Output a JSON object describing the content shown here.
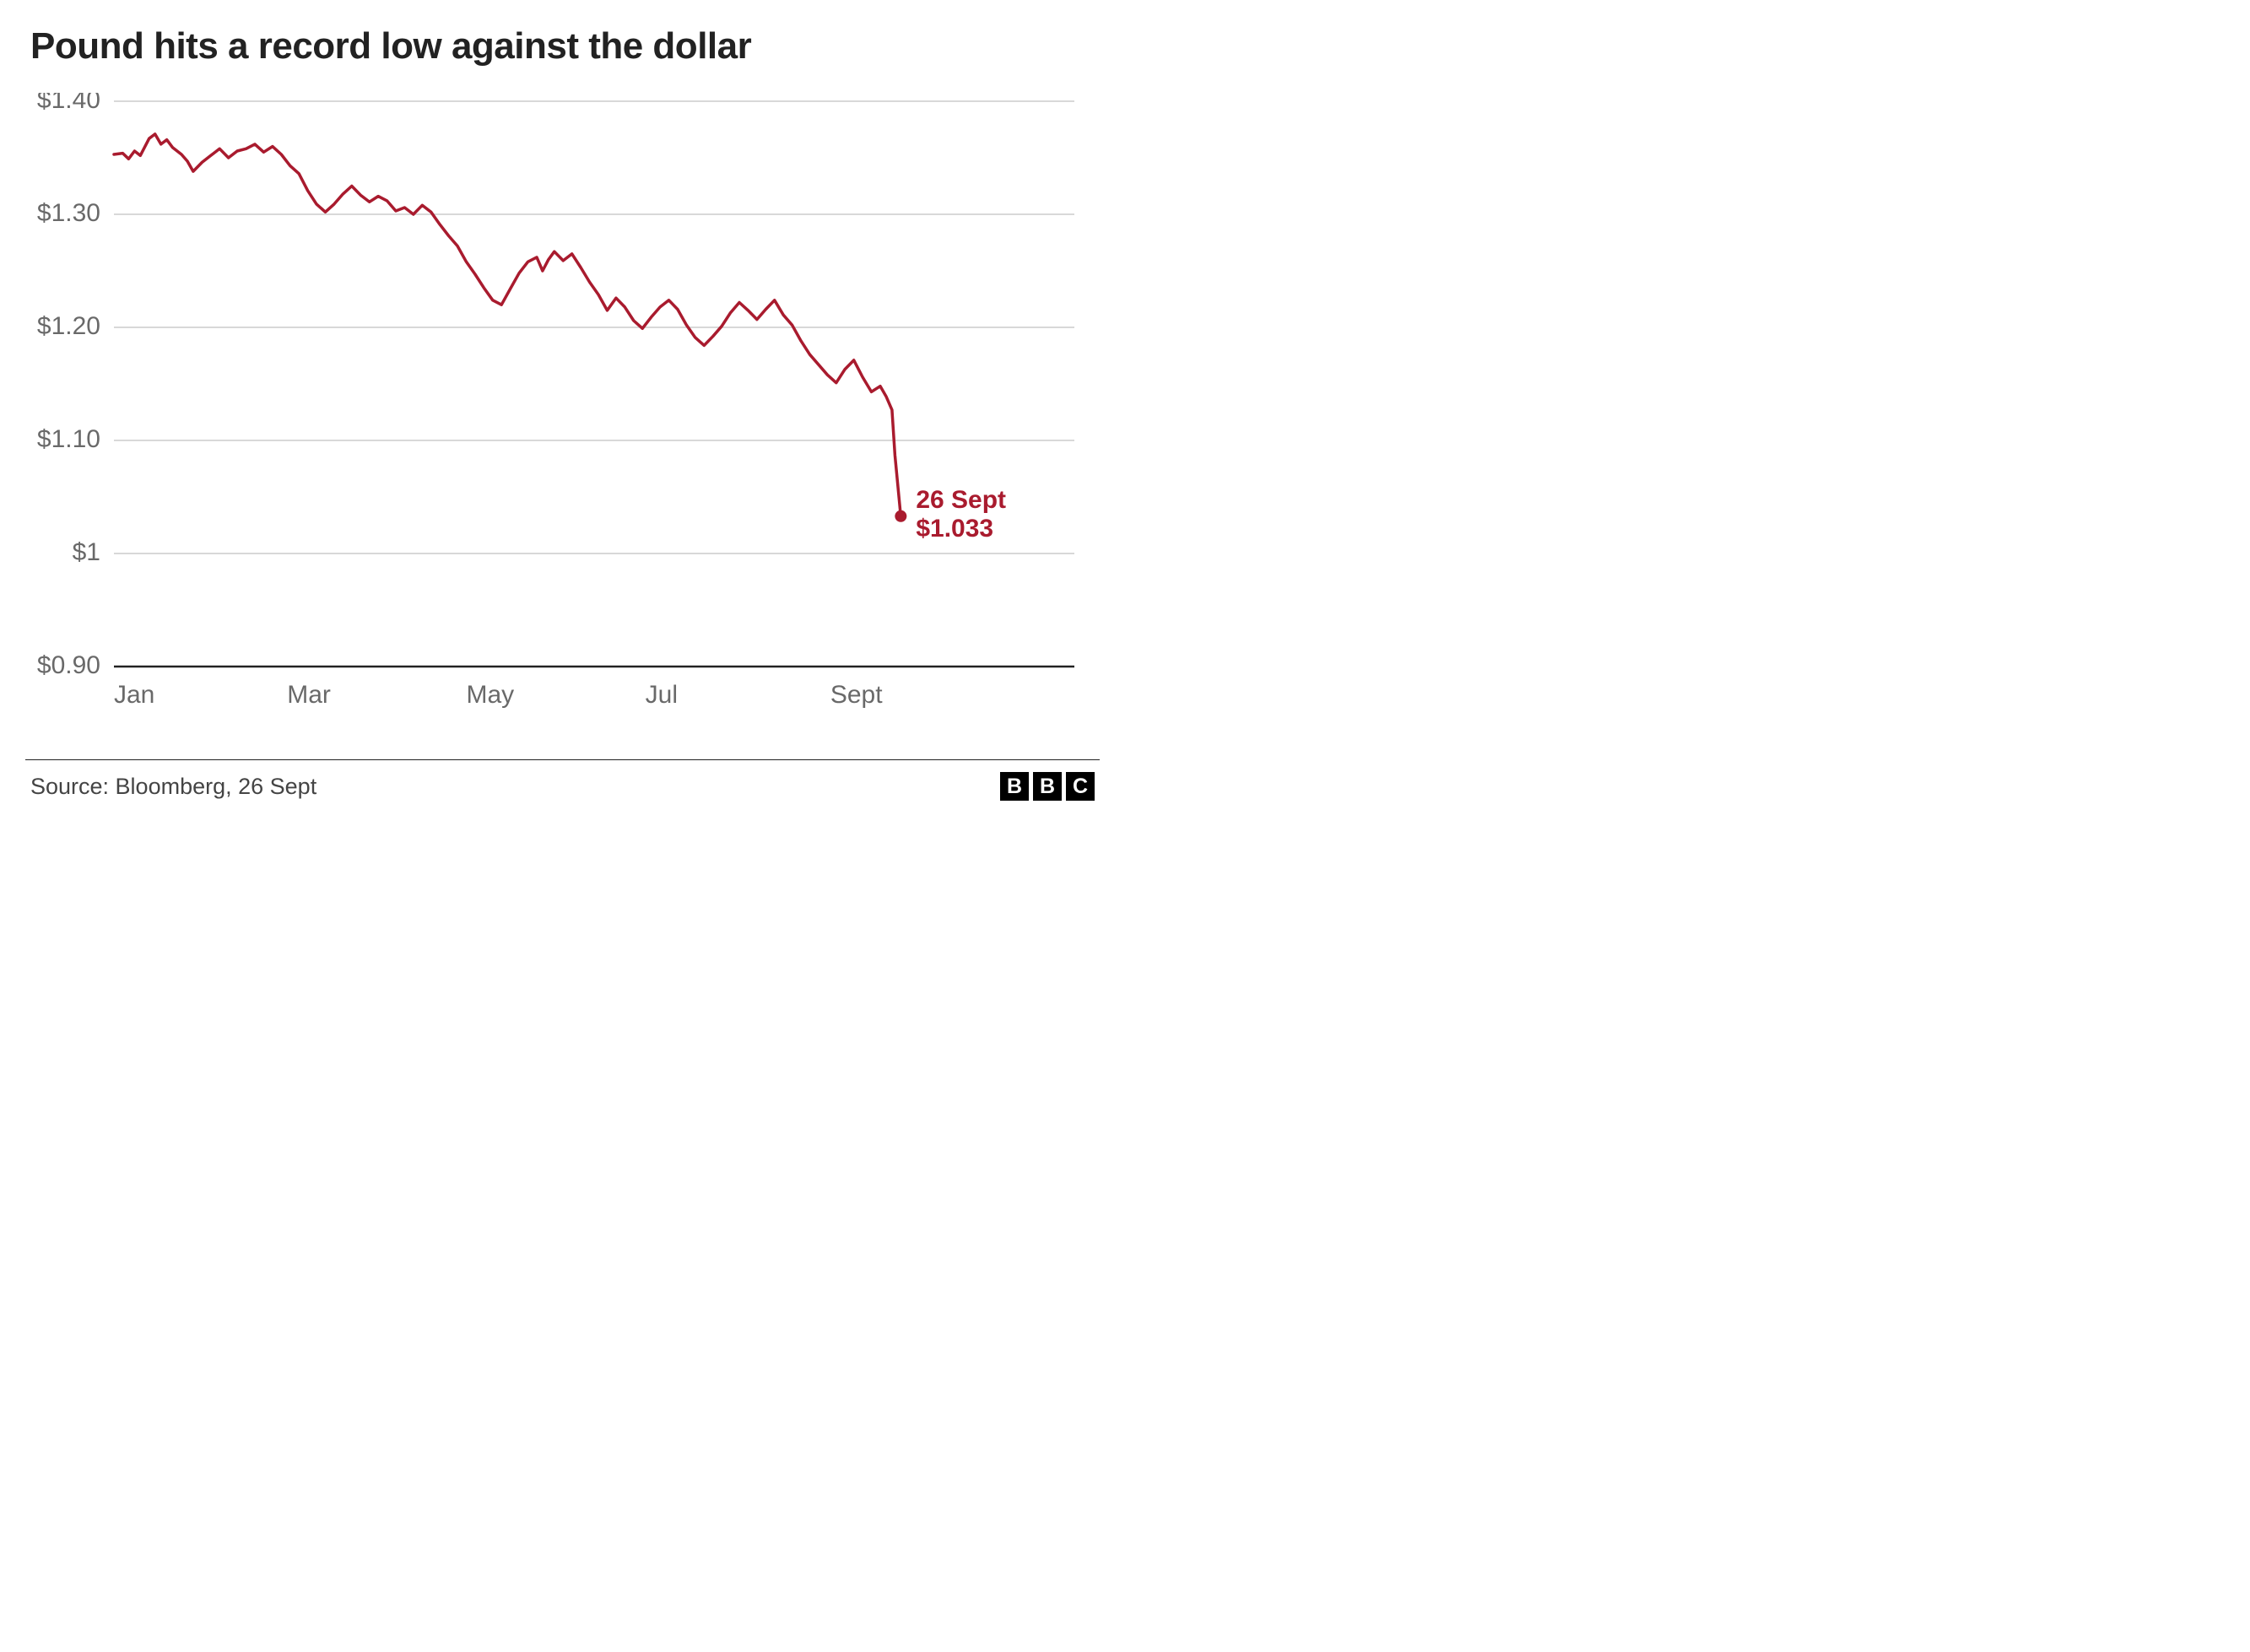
{
  "title": "Pound hits a record low against the dollar",
  "source": "Source: Bloomberg, 26 Sept",
  "logo_letters": [
    "B",
    "B",
    "C"
  ],
  "chart": {
    "type": "line",
    "line_color": "#a91b2e",
    "line_width": 3.5,
    "end_marker_color": "#a91b2e",
    "end_marker_radius": 7,
    "end_label_date": "26 Sept",
    "end_label_value": "$1.033",
    "end_label_color": "#a91b2e",
    "background_color": "#ffffff",
    "grid_color": "#cccccc",
    "axis_color": "#222222",
    "tick_label_color": "#696969",
    "tick_fontsize": 30,
    "title_fontsize": 44,
    "title_color": "#222222",
    "ylim": [
      0.9,
      1.4
    ],
    "yticks": [
      {
        "v": 1.4,
        "label": "$1.40"
      },
      {
        "v": 1.3,
        "label": "$1.30"
      },
      {
        "v": 1.2,
        "label": "$1.20"
      },
      {
        "v": 1.1,
        "label": "$1.10"
      },
      {
        "v": 1.0,
        "label": "$1"
      },
      {
        "v": 0.9,
        "label": "$0.90"
      }
    ],
    "x_start_day": 0,
    "x_end_day": 284,
    "xticks": [
      {
        "day": 0,
        "label": "Jan"
      },
      {
        "day": 59,
        "label": "Mar"
      },
      {
        "day": 120,
        "label": "May"
      },
      {
        "day": 181,
        "label": "Jul"
      },
      {
        "day": 244,
        "label": "Sept"
      }
    ],
    "series": [
      {
        "day": 0,
        "v": 1.353
      },
      {
        "day": 3,
        "v": 1.354
      },
      {
        "day": 5,
        "v": 1.349
      },
      {
        "day": 7,
        "v": 1.356
      },
      {
        "day": 9,
        "v": 1.352
      },
      {
        "day": 12,
        "v": 1.367
      },
      {
        "day": 14,
        "v": 1.371
      },
      {
        "day": 16,
        "v": 1.362
      },
      {
        "day": 18,
        "v": 1.366
      },
      {
        "day": 20,
        "v": 1.359
      },
      {
        "day": 23,
        "v": 1.353
      },
      {
        "day": 25,
        "v": 1.347
      },
      {
        "day": 27,
        "v": 1.338
      },
      {
        "day": 30,
        "v": 1.346
      },
      {
        "day": 33,
        "v": 1.352
      },
      {
        "day": 36,
        "v": 1.358
      },
      {
        "day": 39,
        "v": 1.35
      },
      {
        "day": 42,
        "v": 1.356
      },
      {
        "day": 45,
        "v": 1.358
      },
      {
        "day": 48,
        "v": 1.362
      },
      {
        "day": 51,
        "v": 1.355
      },
      {
        "day": 54,
        "v": 1.36
      },
      {
        "day": 57,
        "v": 1.353
      },
      {
        "day": 60,
        "v": 1.343
      },
      {
        "day": 63,
        "v": 1.336
      },
      {
        "day": 66,
        "v": 1.321
      },
      {
        "day": 69,
        "v": 1.309
      },
      {
        "day": 72,
        "v": 1.302
      },
      {
        "day": 75,
        "v": 1.309
      },
      {
        "day": 78,
        "v": 1.318
      },
      {
        "day": 81,
        "v": 1.325
      },
      {
        "day": 84,
        "v": 1.317
      },
      {
        "day": 87,
        "v": 1.311
      },
      {
        "day": 90,
        "v": 1.316
      },
      {
        "day": 93,
        "v": 1.312
      },
      {
        "day": 96,
        "v": 1.303
      },
      {
        "day": 99,
        "v": 1.306
      },
      {
        "day": 102,
        "v": 1.3
      },
      {
        "day": 105,
        "v": 1.308
      },
      {
        "day": 108,
        "v": 1.302
      },
      {
        "day": 111,
        "v": 1.291
      },
      {
        "day": 114,
        "v": 1.281
      },
      {
        "day": 117,
        "v": 1.272
      },
      {
        "day": 120,
        "v": 1.258
      },
      {
        "day": 123,
        "v": 1.247
      },
      {
        "day": 126,
        "v": 1.235
      },
      {
        "day": 129,
        "v": 1.224
      },
      {
        "day": 132,
        "v": 1.22
      },
      {
        "day": 135,
        "v": 1.234
      },
      {
        "day": 138,
        "v": 1.248
      },
      {
        "day": 141,
        "v": 1.258
      },
      {
        "day": 144,
        "v": 1.262
      },
      {
        "day": 146,
        "v": 1.25
      },
      {
        "day": 148,
        "v": 1.26
      },
      {
        "day": 150,
        "v": 1.267
      },
      {
        "day": 153,
        "v": 1.259
      },
      {
        "day": 156,
        "v": 1.265
      },
      {
        "day": 159,
        "v": 1.253
      },
      {
        "day": 162,
        "v": 1.24
      },
      {
        "day": 165,
        "v": 1.229
      },
      {
        "day": 168,
        "v": 1.215
      },
      {
        "day": 171,
        "v": 1.226
      },
      {
        "day": 174,
        "v": 1.218
      },
      {
        "day": 177,
        "v": 1.206
      },
      {
        "day": 180,
        "v": 1.199
      },
      {
        "day": 183,
        "v": 1.209
      },
      {
        "day": 186,
        "v": 1.218
      },
      {
        "day": 189,
        "v": 1.224
      },
      {
        "day": 192,
        "v": 1.216
      },
      {
        "day": 195,
        "v": 1.202
      },
      {
        "day": 198,
        "v": 1.191
      },
      {
        "day": 201,
        "v": 1.184
      },
      {
        "day": 204,
        "v": 1.192
      },
      {
        "day": 207,
        "v": 1.201
      },
      {
        "day": 210,
        "v": 1.213
      },
      {
        "day": 213,
        "v": 1.222
      },
      {
        "day": 216,
        "v": 1.215
      },
      {
        "day": 219,
        "v": 1.207
      },
      {
        "day": 222,
        "v": 1.216
      },
      {
        "day": 225,
        "v": 1.224
      },
      {
        "day": 228,
        "v": 1.211
      },
      {
        "day": 231,
        "v": 1.202
      },
      {
        "day": 234,
        "v": 1.188
      },
      {
        "day": 237,
        "v": 1.176
      },
      {
        "day": 240,
        "v": 1.167
      },
      {
        "day": 243,
        "v": 1.158
      },
      {
        "day": 246,
        "v": 1.151
      },
      {
        "day": 249,
        "v": 1.163
      },
      {
        "day": 252,
        "v": 1.171
      },
      {
        "day": 255,
        "v": 1.156
      },
      {
        "day": 258,
        "v": 1.143
      },
      {
        "day": 261,
        "v": 1.148
      },
      {
        "day": 263,
        "v": 1.139
      },
      {
        "day": 265,
        "v": 1.127
      },
      {
        "day": 266,
        "v": 1.087
      },
      {
        "day": 268,
        "v": 1.033
      }
    ]
  }
}
